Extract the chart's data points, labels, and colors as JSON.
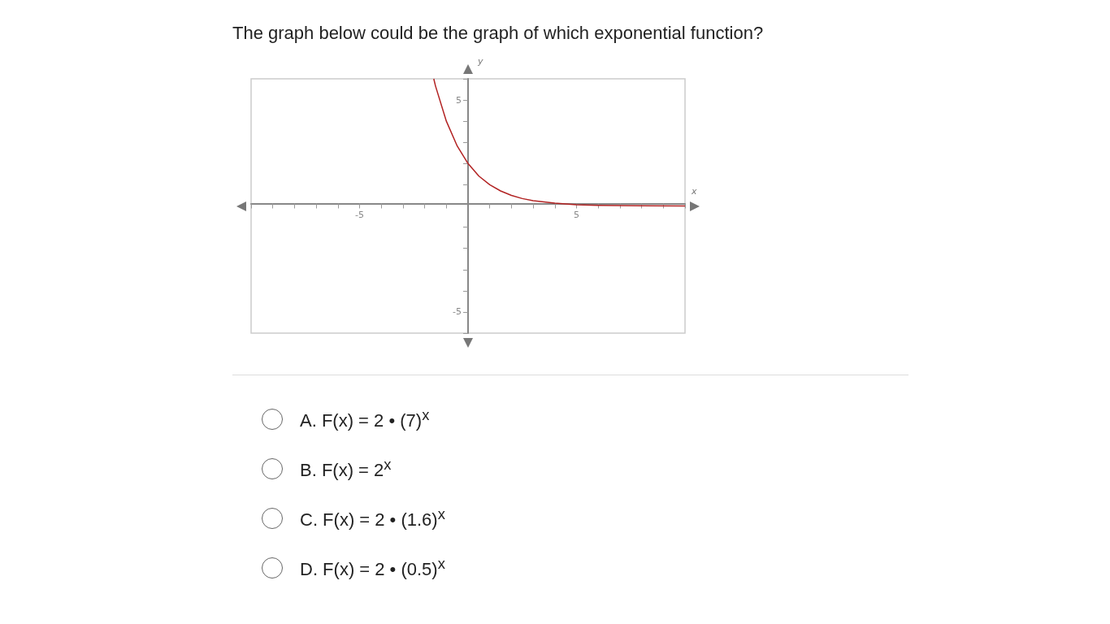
{
  "chart_data": {
    "type": "line",
    "title": "The graph below could be the graph of which exponential function?",
    "xlabel": "x",
    "ylabel": "y",
    "annotations": [
      "A. F(x) = 2 • (7)$^{x}$",
      "B. F(x) = 2$^{x}$",
      "C. F(x) = 2 • (1.6)$^{x}$",
      "D. F(x) = 2 • (0.5)$^{x}$"
    ],
    "x": [
      -1.58,
      -1.5,
      -1,
      -0.5,
      0,
      0.5,
      1,
      1.5,
      2,
      2.5,
      3,
      4,
      5,
      6,
      8,
      10
    ],
    "values": [
      6,
      5.66,
      4,
      2.83,
      2,
      1.41,
      1,
      0.71,
      0.5,
      0.35,
      0.25,
      0.13,
      0.06,
      0.03,
      0.01,
      0
    ],
    "color": "#b22222",
    "xlim": [
      -10,
      10
    ],
    "ylim": [
      -6,
      6
    ],
    "xticks": [
      {
        "value": -10,
        "label": null
      },
      {
        "value": -9,
        "label": null
      },
      {
        "value": -8,
        "label": null
      },
      {
        "value": -7,
        "label": null
      },
      {
        "value": -6,
        "label": null
      },
      -5,
      {
        "value": -4,
        "label": null
      },
      {
        "value": -3,
        "label": null
      },
      {
        "value": -2,
        "label": null
      },
      {
        "value": -1,
        "label": null
      },
      {
        "value": 1,
        "label": null
      },
      {
        "value": 2,
        "label": null
      },
      {
        "value": 3,
        "label": null
      },
      {
        "value": 4,
        "label": null
      },
      5,
      {
        "value": 6,
        "label": null
      },
      {
        "value": 7,
        "label": null
      },
      {
        "value": 8,
        "label": null
      },
      {
        "value": 9,
        "label": null
      },
      {
        "value": 10,
        "label": null
      }
    ],
    "yticks": [
      {
        "value": -6,
        "label": null
      },
      -5,
      {
        "value": -4,
        "label": null
      },
      {
        "value": -3,
        "label": null
      },
      {
        "value": -2,
        "label": null
      },
      {
        "value": -1,
        "label": null
      },
      {
        "value": 1,
        "label": null
      },
      {
        "value": 2,
        "label": null
      },
      {
        "value": 3,
        "label": null
      },
      {
        "value": 4,
        "label": null
      },
      5,
      {
        "value": 6,
        "label": null
      }
    ]
  }
}
